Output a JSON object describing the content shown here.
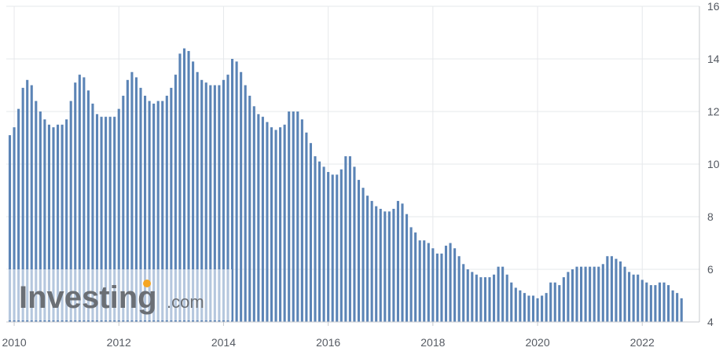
{
  "chart_data": {
    "type": "bar",
    "title": "",
    "xlabel": "",
    "ylabel": "",
    "ylim": [
      4,
      16
    ],
    "y_ticks": [
      4,
      6,
      8,
      10,
      12,
      14,
      16
    ],
    "x_ticks": [
      {
        "label": "2010",
        "x": 2010.0
      },
      {
        "label": "2012",
        "x": 2012.0
      },
      {
        "label": "2014",
        "x": 2014.0
      },
      {
        "label": "2016",
        "x": 2016.0
      },
      {
        "label": "2018",
        "x": 2018.0
      },
      {
        "label": "2020",
        "x": 2020.0
      },
      {
        "label": "2022",
        "x": 2022.0
      }
    ],
    "x_start": "2009-12",
    "frequency": "monthly",
    "grid": true,
    "bar_color": "#5b84b6",
    "values": [
      11.1,
      11.4,
      12.1,
      12.9,
      13.2,
      13.0,
      12.4,
      12.0,
      11.7,
      11.5,
      11.4,
      11.5,
      11.5,
      11.7,
      12.4,
      13.1,
      13.4,
      13.3,
      12.8,
      12.3,
      11.9,
      11.8,
      11.8,
      11.8,
      11.8,
      12.1,
      12.6,
      13.2,
      13.5,
      13.3,
      12.9,
      12.6,
      12.4,
      12.3,
      12.4,
      12.4,
      12.6,
      12.9,
      13.4,
      14.2,
      14.4,
      14.3,
      13.9,
      13.5,
      13.2,
      13.1,
      13.0,
      13.0,
      13.0,
      13.2,
      13.4,
      14.0,
      13.9,
      13.5,
      13.0,
      12.6,
      12.2,
      11.9,
      11.8,
      11.6,
      11.4,
      11.3,
      11.4,
      11.5,
      12.0,
      12.0,
      12.0,
      11.7,
      11.2,
      10.8,
      10.3,
      10.1,
      9.9,
      9.7,
      9.6,
      9.6,
      9.8,
      10.3,
      10.3,
      9.9,
      9.4,
      9.1,
      8.8,
      8.6,
      8.4,
      8.3,
      8.2,
      8.2,
      8.3,
      8.6,
      8.5,
      8.1,
      7.6,
      7.4,
      7.1,
      7.1,
      7.0,
      6.8,
      6.6,
      6.6,
      6.9,
      7.0,
      6.8,
      6.5,
      6.2,
      6.0,
      5.9,
      5.8,
      5.7,
      5.7,
      5.7,
      5.8,
      6.1,
      6.1,
      5.8,
      5.5,
      5.3,
      5.2,
      5.1,
      5.0,
      5.0,
      4.9,
      5.0,
      5.1,
      5.5,
      5.5,
      5.4,
      5.7,
      5.9,
      6.0,
      6.1,
      6.1,
      6.1,
      6.1,
      6.1,
      6.1,
      6.2,
      6.5,
      6.5,
      6.4,
      6.3,
      6.1,
      5.9,
      5.8,
      5.8,
      5.6,
      5.5,
      5.4,
      5.4,
      5.5,
      5.5,
      5.4,
      5.2,
      5.1,
      4.9
    ]
  },
  "watermark": {
    "word": "Investing",
    "suffix": ".com",
    "dot_color": "#f5a623"
  }
}
